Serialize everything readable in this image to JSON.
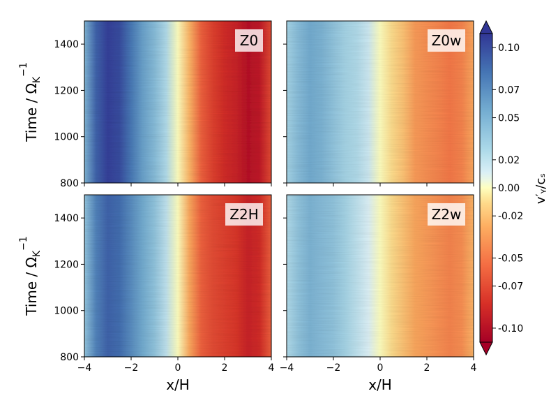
{
  "chart_data": {
    "type": "heatmap",
    "xlabel": "x/H",
    "ylabel": "Time / Ω",
    "ylabel_sub": "K",
    "ylabel_sup": "−1",
    "xlim": [
      -4,
      4
    ],
    "ylim": [
      800,
      1500
    ],
    "x_ticks": [
      -4,
      -2,
      0,
      2,
      4
    ],
    "x_tick_labels": [
      "−4",
      "−2",
      "0",
      "2",
      "4"
    ],
    "y_ticks": [
      800,
      1000,
      1200,
      1400
    ],
    "y_tick_labels": [
      "800",
      "1000",
      "1200",
      "1400"
    ],
    "colormap": "RdYlBu",
    "colorbar": {
      "label": "v′ᵧ/cₛ",
      "range": [
        -0.11,
        0.11
      ],
      "ticks": [
        0.1,
        0.07,
        0.05,
        0.02,
        0.0,
        -0.02,
        -0.05,
        -0.07,
        -0.1
      ],
      "tick_labels": [
        "0.10",
        "0.07",
        "0.05",
        "0.02",
        "0.00",
        "-0.02",
        "-0.05",
        "-0.07",
        "-0.10"
      ],
      "extend": "both"
    },
    "panels": [
      {
        "name": "Z0",
        "x": [
          -4,
          -3.5,
          -3,
          -2.5,
          -2,
          -1.5,
          -1,
          -0.5,
          0,
          0.5,
          1,
          1.5,
          2,
          2.5,
          3,
          3.5,
          4
        ],
        "profile": [
          0.05,
          0.09,
          0.105,
          0.1,
          0.08,
          0.06,
          0.045,
          0.025,
          0.0,
          -0.025,
          -0.06,
          -0.075,
          -0.085,
          -0.09,
          -0.1,
          -0.095,
          -0.07
        ]
      },
      {
        "name": "Z0w",
        "x": [
          -4,
          -3.5,
          -3,
          -2.5,
          -2,
          -1.5,
          -1,
          -0.5,
          0,
          0.5,
          1,
          1.5,
          2,
          2.5,
          3,
          3.5,
          4
        ],
        "profile": [
          0.03,
          0.045,
          0.055,
          0.05,
          0.04,
          0.03,
          0.025,
          0.015,
          0.0,
          -0.01,
          -0.02,
          -0.035,
          -0.04,
          -0.045,
          -0.05,
          -0.045,
          -0.03
        ]
      },
      {
        "name": "Z2H",
        "x": [
          -4,
          -3.5,
          -3,
          -2.5,
          -2,
          -1.5,
          -1,
          -0.5,
          0,
          0.5,
          1,
          1.5,
          2,
          2.5,
          3,
          3.5,
          4
        ],
        "profile": [
          0.04,
          0.075,
          0.09,
          0.085,
          0.07,
          0.055,
          0.04,
          0.02,
          0.0,
          -0.03,
          -0.06,
          -0.07,
          -0.075,
          -0.08,
          -0.09,
          -0.085,
          -0.06
        ]
      },
      {
        "name": "Z2w",
        "x": [
          -4,
          -3.5,
          -3,
          -2.5,
          -2,
          -1.5,
          -1,
          -0.5,
          0,
          0.5,
          1,
          1.5,
          2,
          2.5,
          3,
          3.5,
          4
        ],
        "profile": [
          0.025,
          0.04,
          0.05,
          0.045,
          0.04,
          0.03,
          0.02,
          0.01,
          0.0,
          -0.01,
          -0.02,
          -0.03,
          -0.035,
          -0.04,
          -0.045,
          -0.04,
          -0.025
        ]
      }
    ]
  }
}
